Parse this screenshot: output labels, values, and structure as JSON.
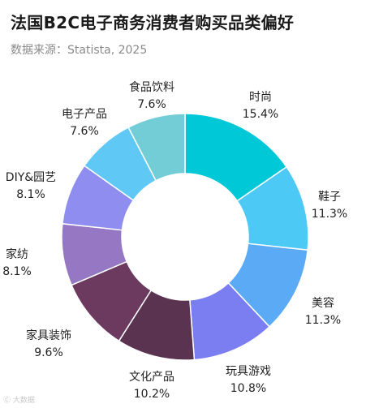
{
  "title": "法国B2C电子商务消费者购买品类偏好",
  "subtitle": "数据来源：Statista, 2025",
  "watermark": "Ⓒ 大数据",
  "chart_data": {
    "type": "pie",
    "variant": "donut",
    "start": "12 o'clock",
    "direction": "clockwise",
    "slices": [
      {
        "label": "时尚",
        "value": 15.4,
        "value_text": "15.4%",
        "color": "#00c8d7"
      },
      {
        "label": "鞋子",
        "value": 11.3,
        "value_text": "11.3%",
        "color": "#4dc9f6"
      },
      {
        "label": "美容",
        "value": 11.3,
        "value_text": "11.3%",
        "color": "#5aaaf5"
      },
      {
        "label": "玩具游戏",
        "value": 10.8,
        "value_text": "10.8%",
        "color": "#7b7ef0"
      },
      {
        "label": "文化产品",
        "value": 10.2,
        "value_text": "10.2%",
        "color": "#5a3350"
      },
      {
        "label": "家具装饰",
        "value": 9.6,
        "value_text": "9.6%",
        "color": "#6b3a5e"
      },
      {
        "label": "家纺",
        "value": 8.1,
        "value_text": "8.1%",
        "color": "#9577c4"
      },
      {
        "label": "DIY&园艺",
        "value": 8.1,
        "value_text": "8.1%",
        "color": "#8f8ef0"
      },
      {
        "label": "电子产品",
        "value": 7.6,
        "value_text": "7.6%",
        "color": "#5fc8f5"
      },
      {
        "label": "食品饮料",
        "value": 7.6,
        "value_text": "7.6%",
        "color": "#72cdd6"
      }
    ]
  }
}
